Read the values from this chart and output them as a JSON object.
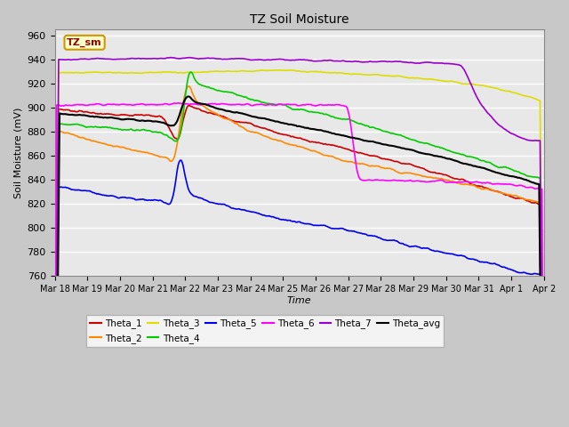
{
  "title": "TZ Soil Moisture",
  "xlabel": "Time",
  "ylabel": "Soil Moisture (mV)",
  "ylim": [
    760,
    965
  ],
  "yticks": [
    760,
    780,
    800,
    820,
    840,
    860,
    880,
    900,
    920,
    940,
    960
  ],
  "label_box_text": "TZ_sm",
  "label_box_color": "#ffffcc",
  "label_box_border": "#cc9900",
  "label_text_color": "#990000",
  "xtick_labels": [
    "Mar 18",
    "Mar 19",
    "Mar 20",
    "Mar 21",
    "Mar 22",
    "Mar 23",
    "Mar 24",
    "Mar 25",
    "Mar 26",
    "Mar 27",
    "Mar 28",
    "Mar 29",
    "Mar 30",
    "Mar 31",
    "Apr 1",
    "Apr 2"
  ],
  "colors": {
    "Theta_1": "#cc0000",
    "Theta_2": "#ff8800",
    "Theta_3": "#dddd00",
    "Theta_4": "#00cc00",
    "Theta_5": "#0000ee",
    "Theta_6": "#ff00ff",
    "Theta_7": "#9900cc",
    "Theta_avg": "#000000"
  },
  "n_points": 500
}
